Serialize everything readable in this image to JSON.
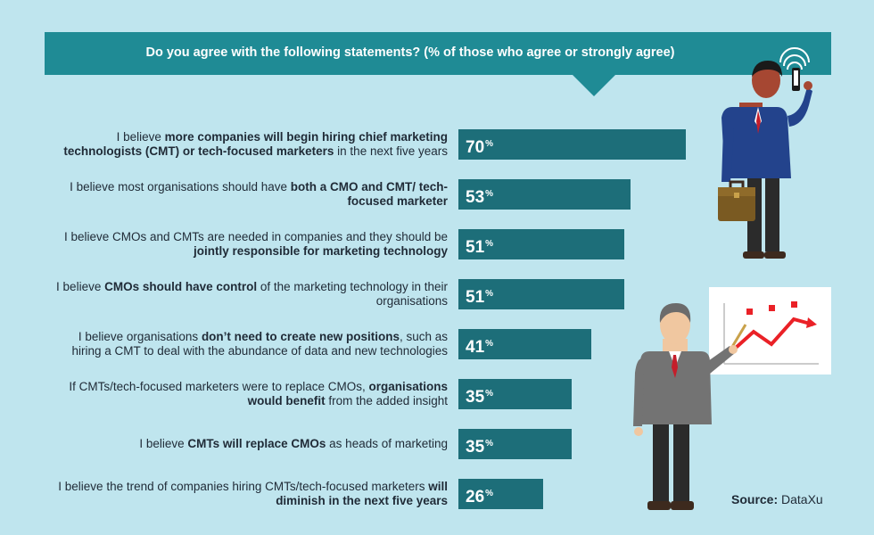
{
  "title": "Do you agree with the following statements? (% of those who agree or strongly agree)",
  "source_label": "Source:",
  "source_name": "DataXu",
  "colors": {
    "background": "#bfe5ee",
    "banner": "#1f8b95",
    "bar": "#1d6e79",
    "line": "#ea2127"
  },
  "chart_data": {
    "type": "bar",
    "orientation": "horizontal",
    "unit": "%",
    "categories": [
      [
        {
          "t": "I believe "
        },
        {
          "t": "more companies will begin hiring chief marketing technologists (CMT) or tech-focused marketers",
          "b": true
        },
        {
          "t": " in the next five years"
        }
      ],
      [
        {
          "t": "I believe most organisations should have "
        },
        {
          "t": "both a CMO and CMT/ tech-focused marketer",
          "b": true
        }
      ],
      [
        {
          "t": "I believe CMOs and CMTs are needed in companies and they should be "
        },
        {
          "t": "jointly responsible for marketing technology",
          "b": true
        }
      ],
      [
        {
          "t": "I believe "
        },
        {
          "t": "CMOs should have control",
          "b": true
        },
        {
          "t": " of the marketing technology in their organisations"
        }
      ],
      [
        {
          "t": "I believe organisations "
        },
        {
          "t": "don’t need to create new positions",
          "b": true
        },
        {
          "t": ", such as hiring a CMT to deal with the abundance of data and new technologies"
        }
      ],
      [
        {
          "t": "If CMTs/tech-focused marketers were to replace CMOs, "
        },
        {
          "t": "organisations would benefit",
          "b": true
        },
        {
          "t": " from the added insight"
        }
      ],
      [
        {
          "t": "I believe "
        },
        {
          "t": "CMTs will replace CMOs",
          "b": true
        },
        {
          "t": " as heads of marketing"
        }
      ],
      [
        {
          "t": "I believe the trend of companies hiring CMTs/tech-focused marketers "
        },
        {
          "t": "will diminish in the next five years",
          "b": true
        }
      ]
    ],
    "values": [
      70,
      53,
      51,
      51,
      41,
      35,
      35,
      26
    ],
    "xlim": [
      0,
      100
    ]
  }
}
